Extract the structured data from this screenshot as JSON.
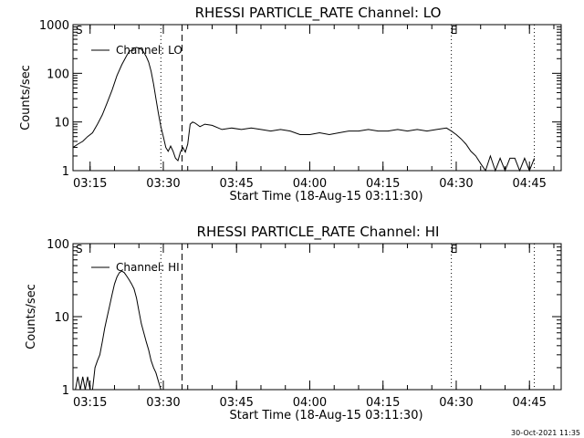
{
  "footer_timestamp": "30-Oct-2021 11:35",
  "chart_data": [
    {
      "type": "line",
      "title": "RHESSI PARTICLE_RATE Channel: LO",
      "xlabel": "Start Time (18-Aug-15 03:11:30)",
      "ylabel": "Counts/sec",
      "yscale": "log",
      "ylim": [
        1,
        1000
      ],
      "yticks": [
        1,
        10,
        100,
        1000
      ],
      "ytick_labels": [
        "1",
        "10",
        "100",
        "1000"
      ],
      "xlim": [
        "03:11:30",
        "04:51:30"
      ],
      "xtick_labels": [
        "03:15",
        "03:30",
        "03:45",
        "04:00",
        "04:15",
        "04:30",
        "04:45"
      ],
      "legend": {
        "label": "Channel: LO",
        "position": "top-left"
      },
      "markers": [
        {
          "time": "03:11:30",
          "label": "S"
        },
        {
          "time": "04:29:00",
          "label": "E"
        }
      ],
      "dotted_lines": [
        "03:29:30",
        "04:29:00",
        "04:46:00"
      ],
      "dashed_lines": [
        "03:33:50"
      ],
      "series": [
        {
          "x": [
            "03:11:30",
            "03:12:30",
            "03:13:30",
            "03:14:30",
            "03:15:30",
            "03:16:30",
            "03:17:30",
            "03:18:30",
            "03:19:30",
            "03:20:30",
            "03:21:30",
            "03:22:30",
            "03:23:00",
            "03:23:30",
            "03:24:00",
            "03:24:30",
            "03:25:00",
            "03:25:30",
            "03:26:00",
            "03:26:30",
            "03:27:00",
            "03:27:30",
            "03:28:00",
            "03:28:30",
            "03:29:00",
            "03:29:30",
            "03:30:00",
            "03:30:30",
            "03:31:00",
            "03:31:30",
            "03:32:00",
            "03:32:30",
            "03:33:00",
            "03:33:30",
            "03:34:00",
            "03:34:30",
            "03:35:00",
            "03:35:30",
            "03:36:00",
            "03:36:30",
            "03:37:30",
            "03:38:30",
            "03:40:00",
            "03:42:00",
            "03:44:00",
            "03:46:00",
            "03:48:00",
            "03:50:00",
            "03:52:00",
            "03:54:00",
            "03:56:00",
            "03:58:00",
            "04:00:00",
            "04:02:00",
            "04:04:00",
            "04:06:00",
            "04:08:00",
            "04:10:00",
            "04:12:00",
            "04:14:00",
            "04:16:00",
            "04:18:00",
            "04:20:00",
            "04:22:00",
            "04:24:00",
            "04:26:00",
            "04:28:00",
            "04:29:00",
            "04:30:00",
            "04:31:00",
            "04:32:00",
            "04:33:00",
            "04:34:00",
            "04:35:00",
            "04:36:00",
            "04:37:00",
            "04:38:00",
            "04:39:00",
            "04:40:00",
            "04:41:00",
            "04:42:00",
            "04:43:00",
            "04:44:00",
            "04:45:00",
            "04:46:00"
          ],
          "y": [
            3,
            3.5,
            4,
            5,
            6,
            9,
            14,
            25,
            45,
            90,
            150,
            230,
            280,
            300,
            330,
            340,
            330,
            310,
            270,
            220,
            170,
            110,
            60,
            30,
            15,
            8,
            5,
            3,
            2.5,
            3.2,
            2.5,
            1.8,
            1.6,
            2.4,
            3,
            2.4,
            3.5,
            9,
            10,
            9.5,
            8,
            9,
            8.5,
            7,
            7.5,
            7,
            7.5,
            7,
            6.5,
            7,
            6.5,
            5.5,
            5.5,
            6,
            5.5,
            6,
            6.5,
            6.5,
            7,
            6.5,
            6.5,
            7,
            6.5,
            7,
            6.5,
            7,
            7.5,
            6.5,
            5.5,
            4.5,
            3.5,
            2.5,
            2,
            1.4,
            1,
            2,
            1,
            1.8,
            1,
            1.8,
            1.8,
            1,
            1.8,
            1,
            1.8
          ]
        }
      ]
    },
    {
      "type": "line",
      "title": "RHESSI PARTICLE_RATE Channel: HI",
      "xlabel": "Start Time (18-Aug-15 03:11:30)",
      "ylabel": "Counts/sec",
      "yscale": "log",
      "ylim": [
        1,
        100
      ],
      "yticks": [
        1,
        10,
        100
      ],
      "ytick_labels": [
        "1",
        "10",
        "100"
      ],
      "xlim": [
        "03:11:30",
        "04:51:30"
      ],
      "xtick_labels": [
        "03:15",
        "03:30",
        "03:45",
        "04:00",
        "04:15",
        "04:30",
        "04:45"
      ],
      "legend": {
        "label": "Channel: HI",
        "position": "top-left"
      },
      "markers": [
        {
          "time": "03:11:30",
          "label": "S"
        },
        {
          "time": "04:29:00",
          "label": "E"
        }
      ],
      "dotted_lines": [
        "03:29:30",
        "04:29:00",
        "04:46:00"
      ],
      "dashed_lines": [
        "03:33:50"
      ],
      "series": [
        {
          "x": [
            "03:11:30",
            "03:12:00",
            "03:12:30",
            "03:13:00",
            "03:13:30",
            "03:14:00",
            "03:14:30",
            "03:15:00",
            "03:15:30",
            "03:16:00",
            "03:16:30",
            "03:17:00",
            "03:17:30",
            "03:18:00",
            "03:18:30",
            "03:19:00",
            "03:19:30",
            "03:20:00",
            "03:20:30",
            "03:21:00",
            "03:21:30",
            "03:22:00",
            "03:22:30",
            "03:23:00",
            "03:23:30",
            "03:24:00",
            "03:24:30",
            "03:25:00",
            "03:25:30",
            "03:26:00",
            "03:26:30",
            "03:27:00",
            "03:27:30",
            "03:28:00",
            "03:28:30",
            "03:29:00",
            "03:29:30"
          ],
          "y": [
            1,
            1,
            1.5,
            1,
            1.5,
            1,
            1.5,
            1,
            1,
            2,
            2.5,
            3,
            4.5,
            7,
            10,
            14,
            20,
            28,
            35,
            40,
            42,
            40,
            36,
            32,
            28,
            24,
            18,
            12,
            8,
            6,
            4.5,
            3.5,
            2.5,
            2,
            1.7,
            1.3,
            1
          ]
        }
      ]
    }
  ]
}
